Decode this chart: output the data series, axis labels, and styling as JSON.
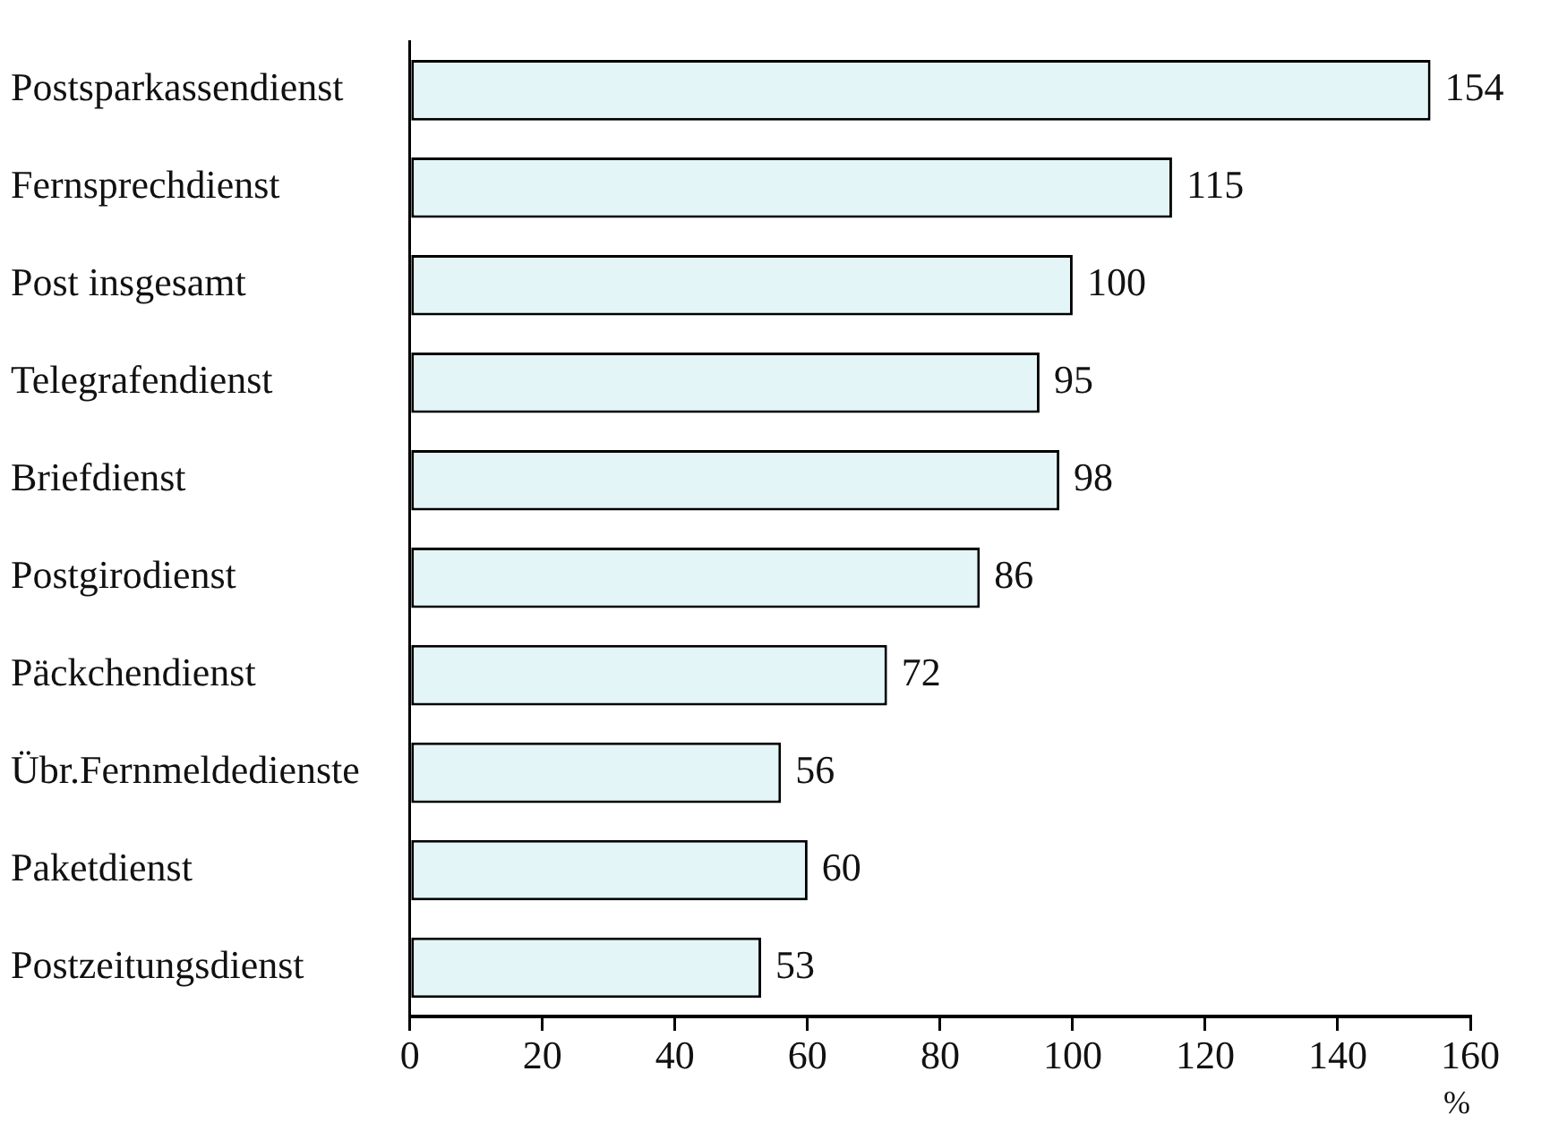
{
  "chart_data": {
    "type": "bar",
    "orientation": "horizontal",
    "xlabel": "%",
    "categories": [
      "Postsparkassendienst",
      "Fernsprechdienst",
      "Post insgesamt",
      "Telegrafendienst",
      "Briefdienst",
      "Postgirodienst",
      "Päckchendienst",
      "Übr.Fernmeldedienste",
      "Paketdienst",
      "Postzeitungsdienst"
    ],
    "values": [
      154,
      115,
      100,
      95,
      98,
      86,
      72,
      56,
      60,
      53
    ],
    "color": "#e4f5f7",
    "data_labels": true,
    "xlim": [
      0,
      160
    ],
    "xticks": [
      0,
      20,
      40,
      60,
      80,
      100,
      120,
      140,
      160
    ]
  }
}
